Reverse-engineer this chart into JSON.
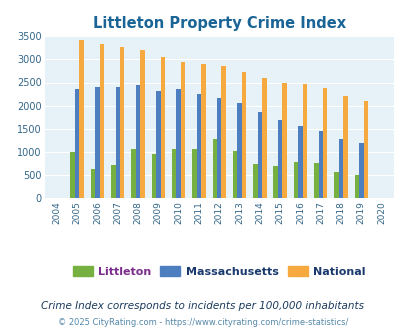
{
  "title": "Littleton Property Crime Index",
  "years": [
    2004,
    2005,
    2006,
    2007,
    2008,
    2009,
    2010,
    2011,
    2012,
    2013,
    2014,
    2015,
    2016,
    2017,
    2018,
    2019,
    2020
  ],
  "littleton": [
    0,
    1000,
    620,
    720,
    1060,
    950,
    1070,
    1050,
    1270,
    1010,
    730,
    700,
    780,
    760,
    560,
    490,
    0
  ],
  "massachusetts": [
    0,
    2370,
    2400,
    2400,
    2450,
    2310,
    2360,
    2260,
    2160,
    2050,
    1860,
    1680,
    1560,
    1460,
    1270,
    1180,
    0
  ],
  "national": [
    0,
    3420,
    3340,
    3270,
    3210,
    3050,
    2950,
    2910,
    2860,
    2730,
    2600,
    2500,
    2470,
    2380,
    2200,
    2110,
    0
  ],
  "littleton_color": "#76b041",
  "massachusetts_color": "#4d7ebf",
  "national_color": "#f5a93e",
  "bg_color": "#e6f2f7",
  "title_color": "#1a6496",
  "ylabel_max": 3500,
  "subtitle": "Crime Index corresponds to incidents per 100,000 inhabitants",
  "footer": "© 2025 CityRating.com - https://www.cityrating.com/crime-statistics/",
  "subtitle_color": "#1a3a5c",
  "footer_color": "#5588aa",
  "legend_littleton_color": "#76b041",
  "legend_massachusetts_color": "#4d7ebf",
  "legend_national_color": "#f5a93e",
  "legend_text_littleton": "#7b2d8b",
  "legend_text_massachusetts": "#1a3a6e",
  "legend_text_national": "#1a3a6e"
}
